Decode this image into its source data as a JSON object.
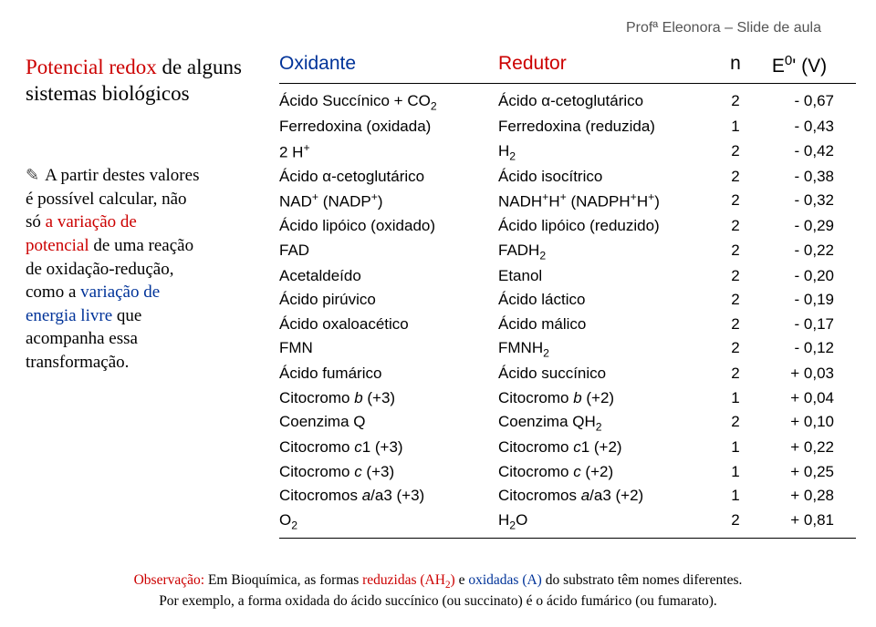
{
  "header": {
    "prof_line": "Profª Eleonora – Slide de aula"
  },
  "title": {
    "line1_red": "Potencial redox",
    "line1_rest": " de alguns",
    "line2": "sistemas biológicos"
  },
  "bullet": {
    "l1": "A partir destes  valores",
    "l2": "é possível calcular, não",
    "l3_a": "só ",
    "l3_b_red": "a variação de",
    "l4_red": "potencial",
    "l4_rest": " de uma reação",
    "l5": "de oxidação-redução,",
    "l6_a": "como a ",
    "l6_b_blue": "variação de",
    "l7_blue": "energia livre",
    "l7_rest": " que",
    "l8": "acompanha essa",
    "l9": "transformação."
  },
  "table": {
    "h_oxidante": "Oxidante",
    "h_redutor": "Redutor",
    "h_n": "n",
    "h_e0": "E0' (V)",
    "rows": [
      {
        "ox": "Ácido Succínico + CO2",
        "red": "Ácido α-cetoglutárico",
        "n": "2",
        "e": "- 0,67"
      },
      {
        "ox": "Ferredoxina (oxidada)",
        "red": "Ferredoxina (reduzida)",
        "n": "1",
        "e": "- 0,43"
      },
      {
        "ox": "2 H+",
        "red": "H2",
        "n": "2",
        "e": "- 0,42"
      },
      {
        "ox": "Ácido α-cetoglutárico",
        "red": "Ácido isocítrico",
        "n": "2",
        "e": "- 0,38"
      },
      {
        "ox": "NAD+ (NADP+)",
        "red": "NADH+H+ (NADPH+H+)",
        "n": "2",
        "e": "- 0,32"
      },
      {
        "ox": "Ácido lipóico (oxidado)",
        "red": "Ácido lipóico (reduzido)",
        "n": "2",
        "e": "- 0,29"
      },
      {
        "ox": "FAD",
        "red": "FADH2",
        "n": "2",
        "e": "- 0,22"
      },
      {
        "ox": "Acetaldeído",
        "red": "Etanol",
        "n": "2",
        "e": "- 0,20"
      },
      {
        "ox": "Ácido pirúvico",
        "red": "Ácido láctico",
        "n": "2",
        "e": "- 0,19"
      },
      {
        "ox": "Ácido oxaloacético",
        "red": "Ácido málico",
        "n": "2",
        "e": "- 0,17"
      },
      {
        "ox": "FMN",
        "red": "FMNH2",
        "n": "2",
        "e": "- 0,12"
      },
      {
        "ox": "Ácido fumárico",
        "red": "Ácido succínico",
        "n": "2",
        "e": "+ 0,03"
      },
      {
        "ox": "Citocromo b (+3)",
        "red": "Citocromo b (+2)",
        "n": "1",
        "e": "+ 0,04"
      },
      {
        "ox": "Coenzima Q",
        "red": "Coenzima QH2",
        "n": "2",
        "e": "+ 0,10"
      },
      {
        "ox": "Citocromo c1 (+3)",
        "red": "Citocromo c1 (+2)",
        "n": "1",
        "e": "+ 0,22"
      },
      {
        "ox": "Citocromo c (+3)",
        "red": "Citocromo c (+2)",
        "n": "1",
        "e": "+ 0,25"
      },
      {
        "ox": "Citocromos a/a3 (+3)",
        "red": "Citocromos a/a3 (+2)",
        "n": "1",
        "e": "+ 0,28"
      },
      {
        "ox": "O2",
        "red": "H2O",
        "n": "2",
        "e": "+ 0,81"
      }
    ]
  },
  "obs": {
    "label_red": "Observação:",
    "l1_a": " Em Bioquímica, as formas ",
    "l1_b_red": "reduzidas (AH",
    "l1_c_red": ")",
    "l1_d": " e ",
    "l1_e_blue": "oxidadas (A)",
    "l1_f": " do substrato têm nomes diferentes.",
    "l2": "Por exemplo, a forma oxidada do ácido succínico (ou succinato) é o ácido fumárico (ou fumarato)."
  },
  "colors": {
    "red": "#cc0000",
    "blue": "#003399",
    "text": "#000000",
    "header_gray": "#555555"
  }
}
